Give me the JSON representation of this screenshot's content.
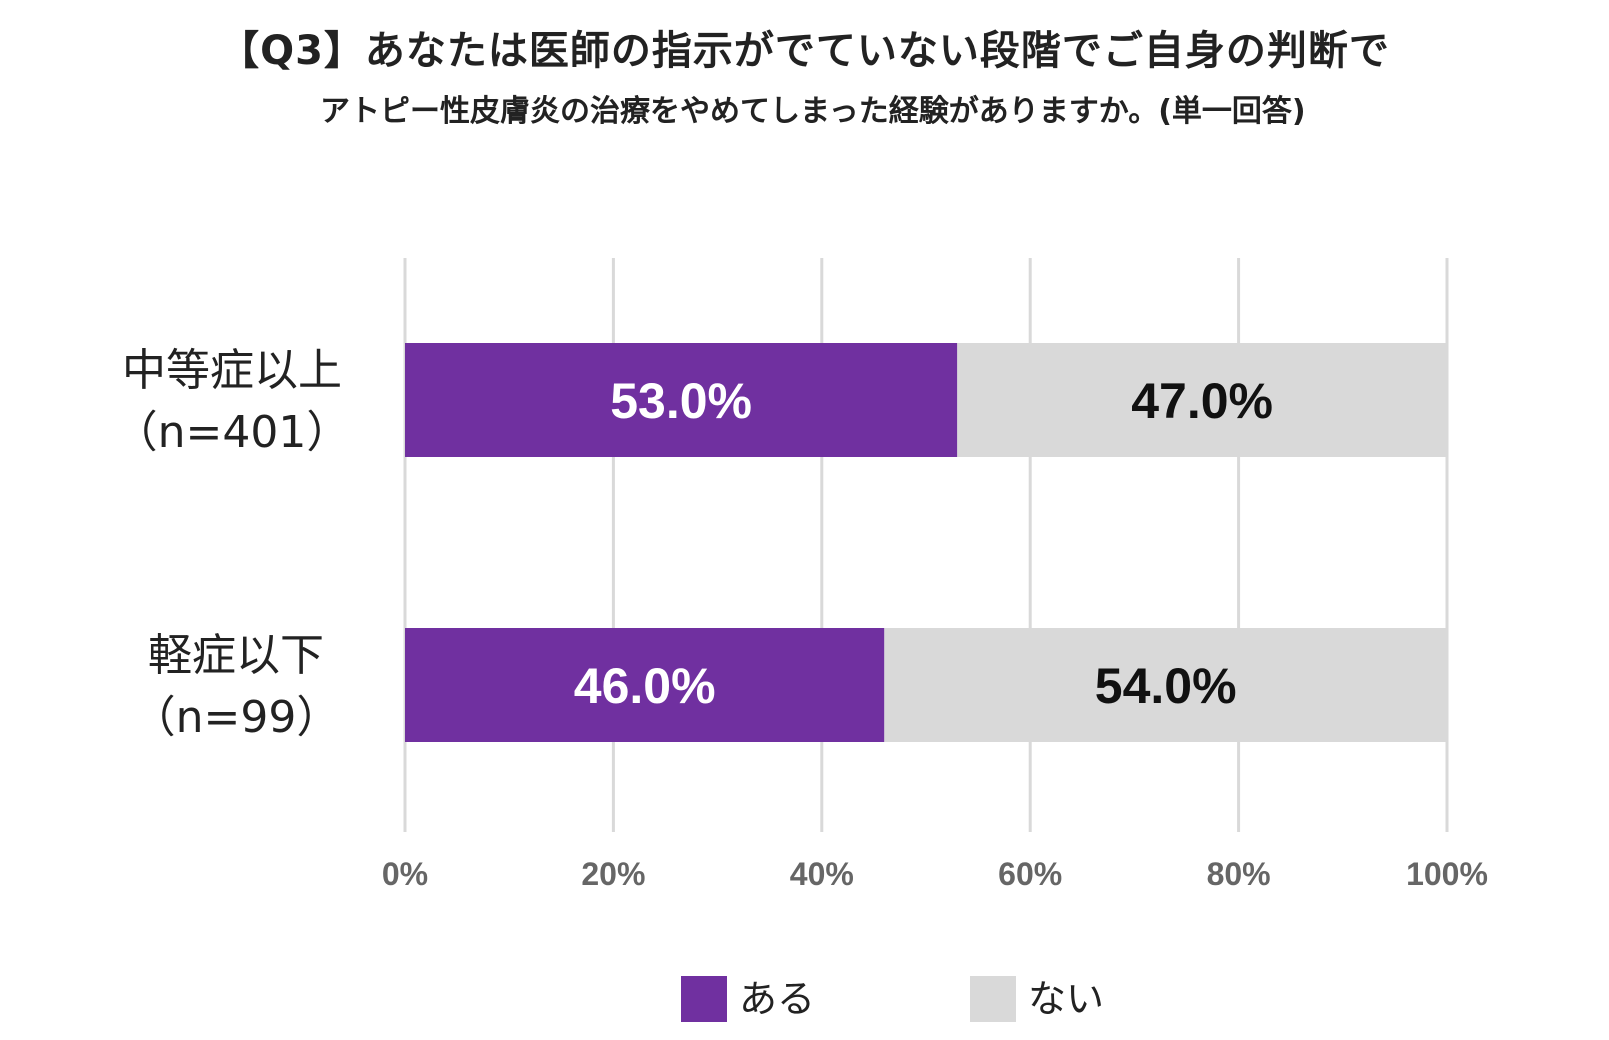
{
  "title": "【Q3】あなたは医師の指示がでていない段階でご自身の判断で",
  "subtitle": "アトピー性皮膚炎の治療をやめてしまった経験がありますか。(単一回答)",
  "colors": {
    "aru": "#7030a0",
    "nai": "#d9d9d9",
    "grid": "#d9d9d9"
  },
  "chart_data": {
    "type": "bar",
    "orientation": "horizontal",
    "stacked": "percent",
    "categories": [
      [
        "中等症以上",
        "（n=401）"
      ],
      [
        "軽症以下",
        "（n=99）"
      ]
    ],
    "series": [
      {
        "name": "ある",
        "values": [
          53.0,
          46.0
        ],
        "labels": [
          "53.0%",
          "46.0%"
        ],
        "color": "#7030a0",
        "label_color": "#ffffff"
      },
      {
        "name": "ない",
        "values": [
          47.0,
          54.0
        ],
        "labels": [
          "47.0%",
          "54.0%"
        ],
        "color": "#d9d9d9",
        "label_color": "#111111"
      }
    ],
    "xlim": [
      0,
      100
    ],
    "xticks": [
      "0%",
      "20%",
      "40%",
      "60%",
      "80%",
      "100%"
    ],
    "grid": true,
    "legend_position": "bottom"
  }
}
